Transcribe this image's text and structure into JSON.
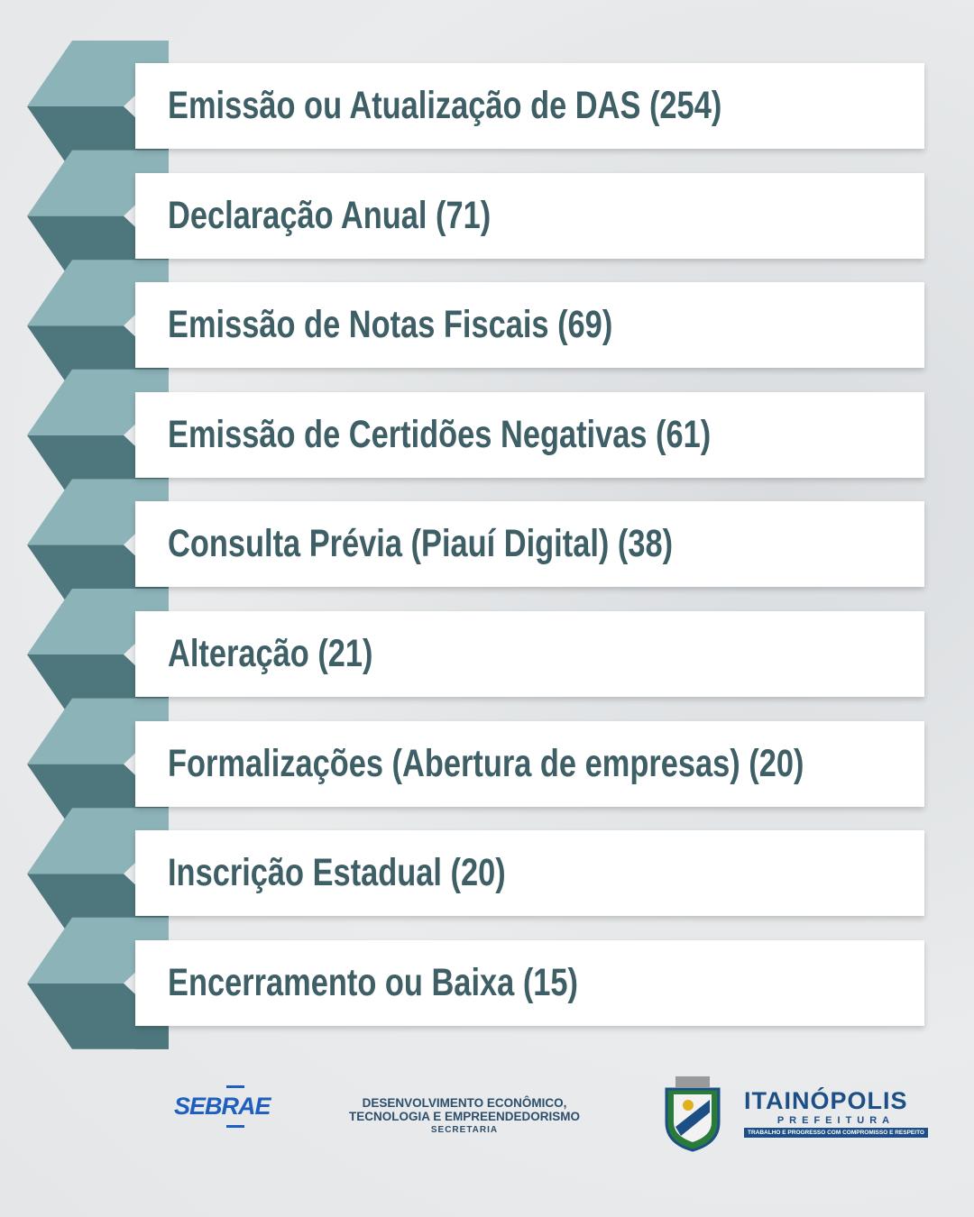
{
  "items": [
    "Emissão ou Atualização de DAS (254)",
    "Declaração Anual (71)",
    "Emissão de Notas Fiscais (69)",
    "Emissão de Certidões Negativas (61)",
    "Consulta Prévia (Piauí Digital) (38)",
    "Alteração (21)",
    "Formalizações (Abertura de empresas) (20)",
    "Inscrição Estadual (20)",
    "Encerramento ou Baixa (15)"
  ],
  "footer": {
    "sebrae": "SEBRAE",
    "secretaria": {
      "line1": "DESENVOLVIMENTO ECONÔMICO,",
      "line2": "TECNOLOGIA E EMPREENDEDORISMO",
      "line3": "SECRETARIA"
    },
    "prefeitura": {
      "name": "ITAINÓPOLIS",
      "subtitle": "PREFEITURA",
      "motto": "TRABALHO E PROGRESSO COM COMPROMISSO E RESPEITO"
    }
  }
}
